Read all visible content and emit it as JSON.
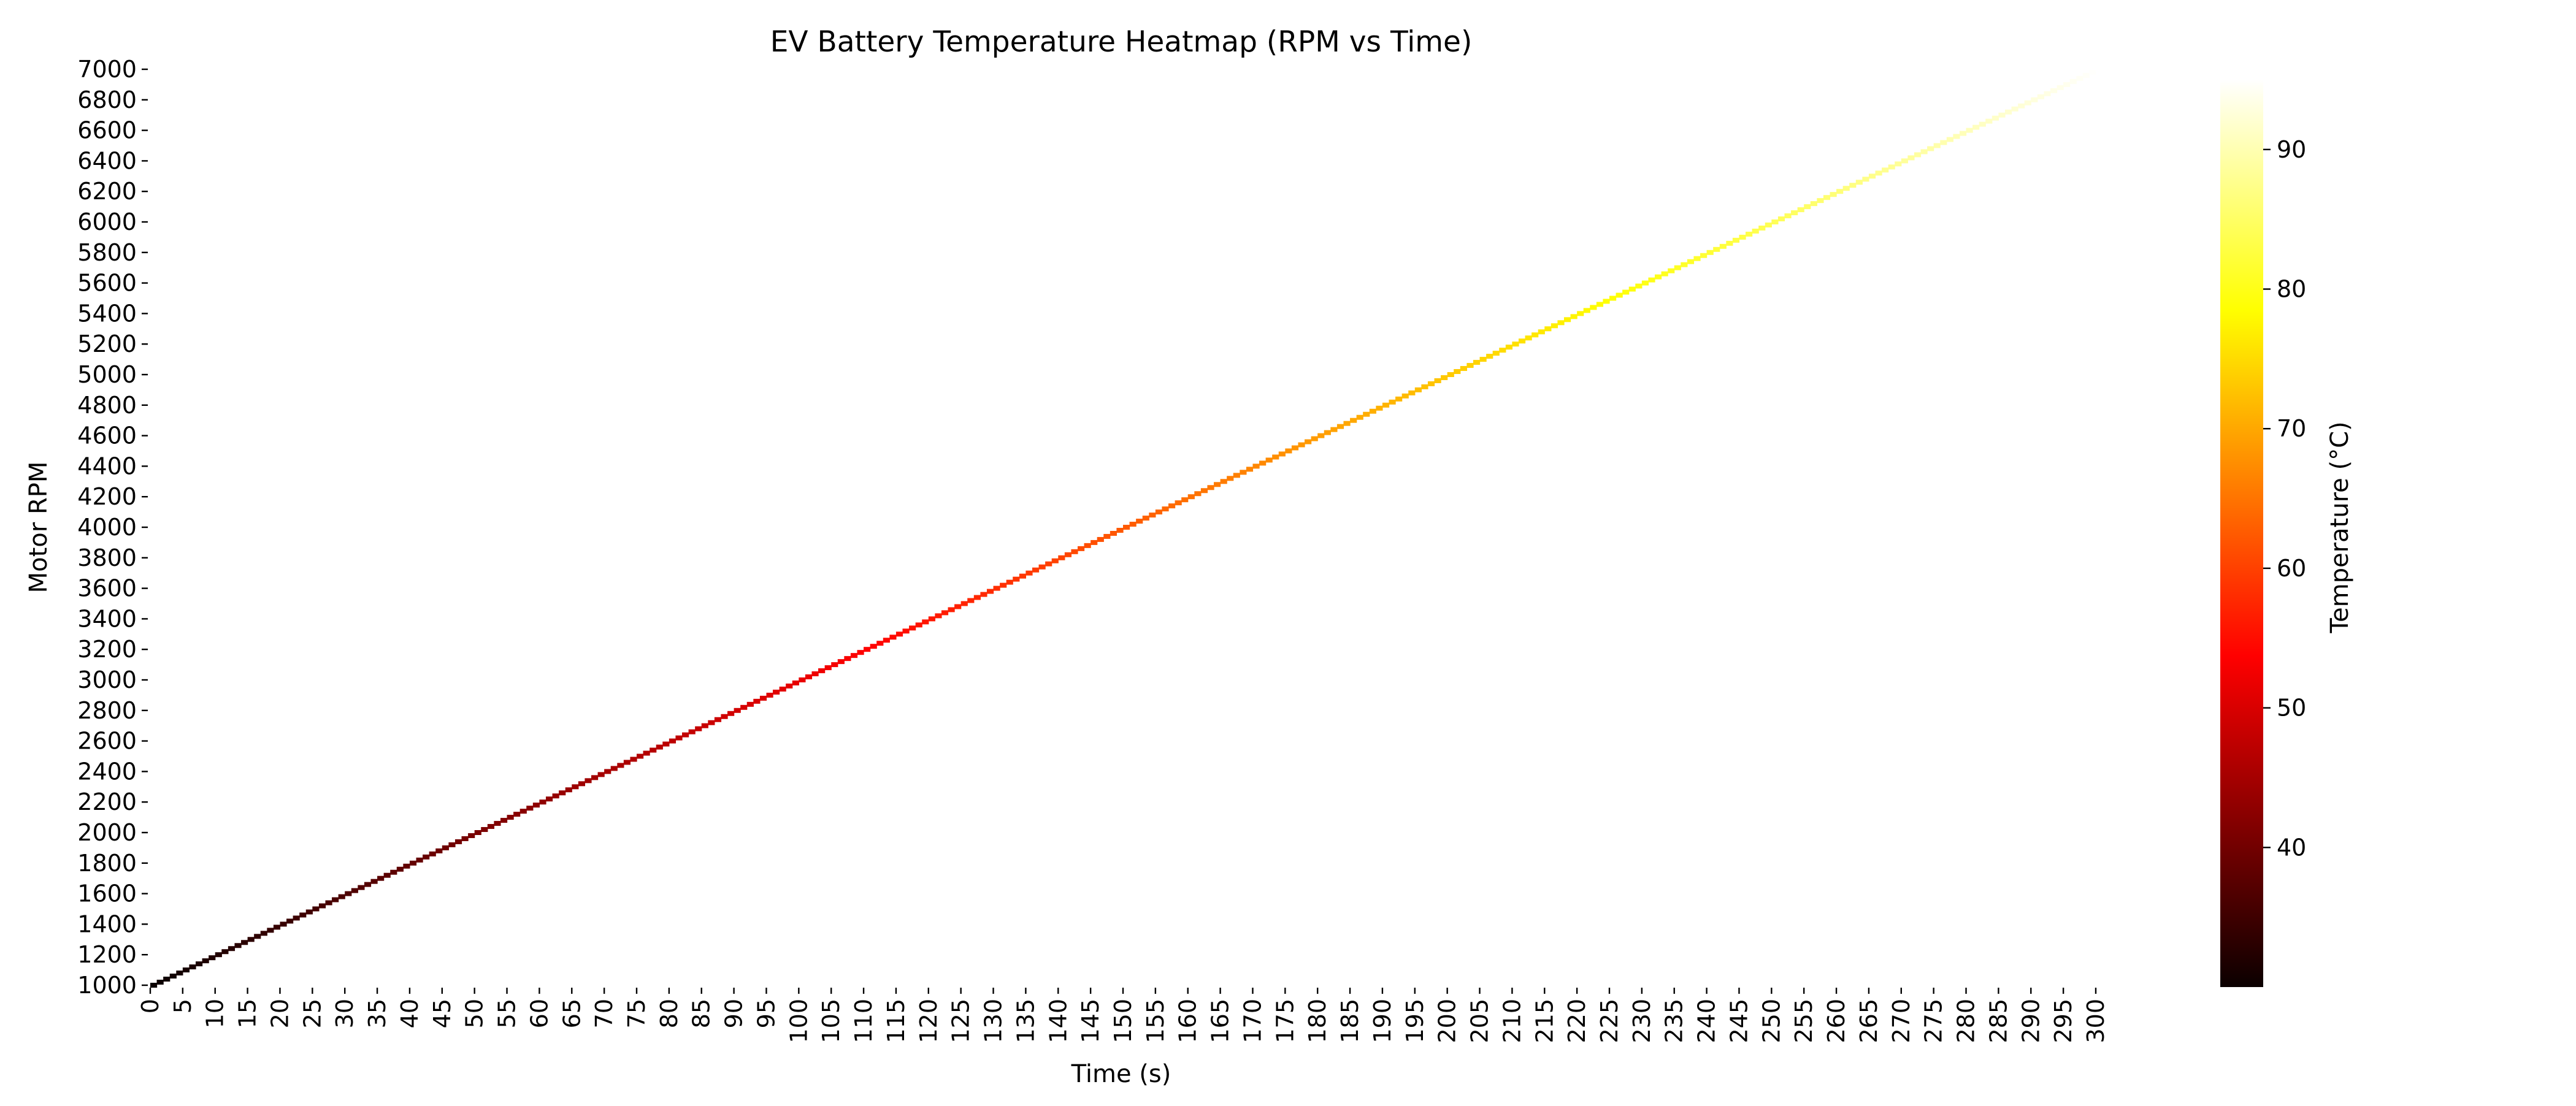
{
  "chart_data": {
    "type": "heatmap",
    "title": "EV Battery Temperature Heatmap (RPM vs Time)",
    "xlabel": "Time (s)",
    "ylabel": "Motor RPM",
    "colorbar_label": "Temperature (°C)",
    "colormap": "hot",
    "x_ticks": [
      0,
      5,
      10,
      15,
      20,
      25,
      30,
      35,
      40,
      45,
      50,
      55,
      60,
      65,
      70,
      75,
      80,
      85,
      90,
      95,
      100,
      105,
      110,
      115,
      120,
      125,
      130,
      135,
      140,
      145,
      150,
      155,
      160,
      165,
      170,
      175,
      180,
      185,
      190,
      195,
      200,
      205,
      210,
      215,
      220,
      225,
      230,
      235,
      240,
      245,
      250,
      255,
      260,
      265,
      270,
      275,
      280,
      285,
      290,
      295,
      300
    ],
    "y_ticks": [
      1000,
      1200,
      1400,
      1600,
      1800,
      2000,
      2200,
      2400,
      2600,
      2800,
      3000,
      3200,
      3400,
      3600,
      3800,
      4000,
      4200,
      4400,
      4600,
      4800,
      5000,
      5200,
      5400,
      5600,
      5800,
      6000,
      6200,
      6400,
      6600,
      6800,
      7000
    ],
    "xlim": [
      0,
      300
    ],
    "ylim": [
      1000,
      7000
    ],
    "colorbar_ticks": [
      40,
      50,
      60,
      70,
      80,
      90
    ],
    "colorbar_range": [
      30,
      95
    ],
    "data_description_points": [
      {
        "time": 0,
        "rpm": 1000,
        "temperature": 30
      },
      {
        "time": 60,
        "rpm": 2200,
        "temperature": 43
      },
      {
        "time": 120,
        "rpm": 3400,
        "temperature": 56
      },
      {
        "time": 180,
        "rpm": 4600,
        "temperature": 69
      },
      {
        "time": 240,
        "rpm": 5800,
        "temperature": 82
      },
      {
        "time": 300,
        "rpm": 7000,
        "temperature": 95
      }
    ],
    "grid": false,
    "legend": "none"
  }
}
